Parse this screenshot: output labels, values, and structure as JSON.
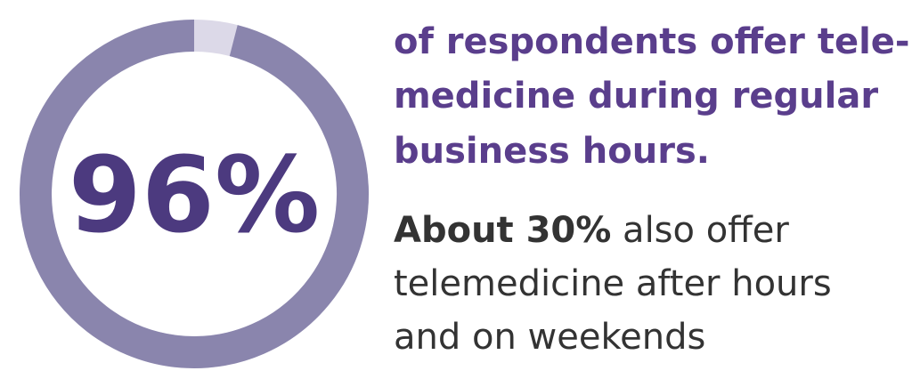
{
  "chart_data": {
    "type": "donut",
    "values": [
      96
    ],
    "value_labels": [
      "96%"
    ],
    "color": "#8a85ad",
    "track_color": "#dcd9e8",
    "headline_lines": [
      "of respondents offer tele-",
      "medicine during regular",
      "business hours."
    ],
    "body_bold": "About 30%",
    "body_lines": [
      " also offer",
      "telemedicine after hours",
      "and on weekends"
    ]
  }
}
